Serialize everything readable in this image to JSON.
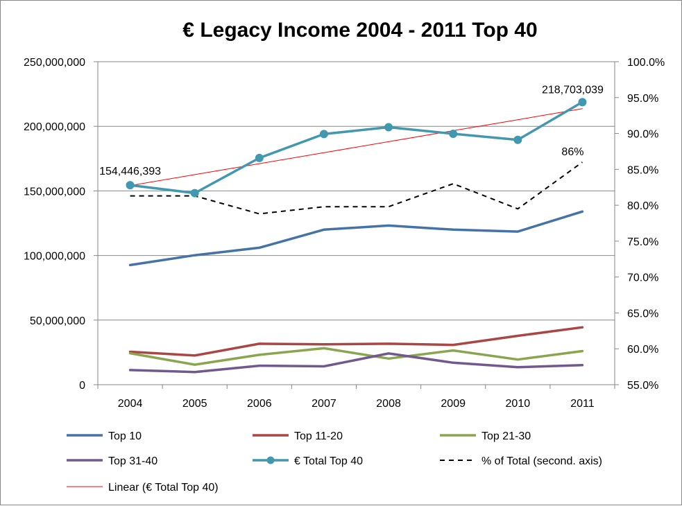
{
  "chart_data": {
    "type": "line",
    "title": "€ Legacy Income 2004 - 2011 Top 40",
    "categories": [
      "2004",
      "2005",
      "2006",
      "2007",
      "2008",
      "2009",
      "2010",
      "2011"
    ],
    "y_left": {
      "min": 0,
      "max": 250000000,
      "step": 50000000,
      "tick_labels": [
        "0",
        "50,000,000",
        "100,000,000",
        "150,000,000",
        "200,000,000",
        "250,000,000"
      ]
    },
    "y_right": {
      "min": 55,
      "max": 100,
      "step": 5,
      "tick_labels": [
        "55.0%",
        "60.0%",
        "65.0%",
        "70.0%",
        "75.0%",
        "80.0%",
        "85.0%",
        "90.0%",
        "95.0%",
        "100.0%"
      ]
    },
    "grid": true,
    "legend_position": "bottom",
    "series": [
      {
        "name": "Top 10",
        "axis": "left",
        "color": "#4572A7",
        "style": "solid",
        "markers": false,
        "values": [
          92600000,
          100200000,
          106000000,
          120000000,
          123200000,
          120000000,
          118500000,
          134000000
        ]
      },
      {
        "name": "Top 11-20",
        "axis": "left",
        "color": "#AA4643",
        "style": "solid",
        "markers": false,
        "values": [
          25500000,
          22600000,
          31700000,
          31300000,
          31700000,
          30800000,
          37800000,
          44400000
        ]
      },
      {
        "name": "Top 21-30",
        "axis": "left",
        "color": "#89A54E",
        "style": "solid",
        "markers": false,
        "values": [
          24300000,
          15500000,
          23100000,
          28200000,
          20200000,
          26500000,
          19500000,
          26000000
        ]
      },
      {
        "name": "Top 31-40",
        "axis": "left",
        "color": "#71588F",
        "style": "solid",
        "markers": false,
        "values": [
          11300000,
          9800000,
          14700000,
          14200000,
          24200000,
          17000000,
          13500000,
          15200000
        ]
      },
      {
        "name": "€ Total Top 40",
        "axis": "left",
        "color": "#4198AF",
        "style": "solid",
        "markers": true,
        "values": [
          154446393,
          148300000,
          175500000,
          194000000,
          199300000,
          194200000,
          189500000,
          218703039
        ]
      },
      {
        "name": "% of Total (second. axis)",
        "axis": "right",
        "color": "#000000",
        "style": "dashed",
        "markers": false,
        "values": [
          81.3,
          81.3,
          78.8,
          79.8,
          79.8,
          83.0,
          79.5,
          86.0
        ]
      },
      {
        "name": "Linear (€ Total Top 40)",
        "axis": "left",
        "color": "#FF0000",
        "style": "thin",
        "markers": false,
        "values": [
          154100000,
          162600000,
          171100000,
          179600000,
          188100000,
          196600000,
          205100000,
          213600000
        ]
      }
    ],
    "annotations": [
      {
        "text": "154,446,393",
        "series": "€ Total Top 40",
        "category": "2004"
      },
      {
        "text": "218,703,039",
        "series": "€ Total Top 40",
        "category": "2011"
      },
      {
        "text": "86%",
        "series": "% of Total (second. axis)",
        "category": "2011"
      }
    ]
  }
}
